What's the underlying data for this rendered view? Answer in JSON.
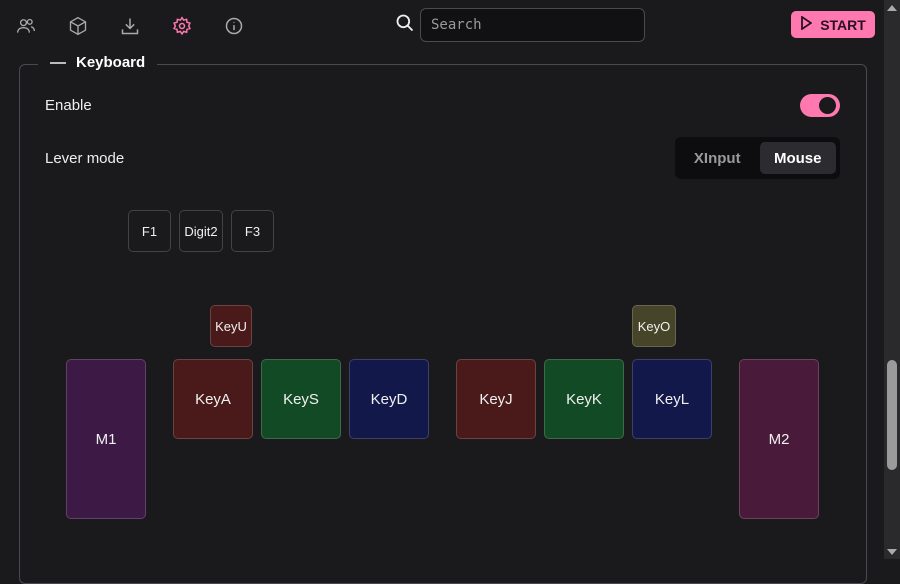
{
  "nav": {
    "icons": [
      "users-icon",
      "cube-icon",
      "download-icon",
      "gear-icon",
      "info-icon"
    ],
    "active": "gear-icon",
    "accent": "#ff79b0"
  },
  "search": {
    "placeholder": "Search",
    "value": ""
  },
  "start_label": "START",
  "section": {
    "title": "Keyboard",
    "enable_label": "Enable",
    "enable_on": true,
    "lever_label": "Lever mode",
    "lever_options": [
      "XInput",
      "Mouse"
    ],
    "lever_selected": "Mouse"
  },
  "keys": {
    "func": [
      "F1",
      "Digit2",
      "F3"
    ],
    "keyu": "KeyU",
    "keyo": "KeyO",
    "left": [
      "KeyA",
      "KeyS",
      "KeyD"
    ],
    "right": [
      "KeyJ",
      "KeyK",
      "KeyL"
    ],
    "m1": "M1",
    "m2": "M2"
  },
  "colors": {
    "red": "#4a1a1b",
    "green": "#134a26",
    "blue": "#13184a",
    "purple": "#3d1a45",
    "magenta": "#4a1a3b",
    "olive": "#46452a"
  }
}
